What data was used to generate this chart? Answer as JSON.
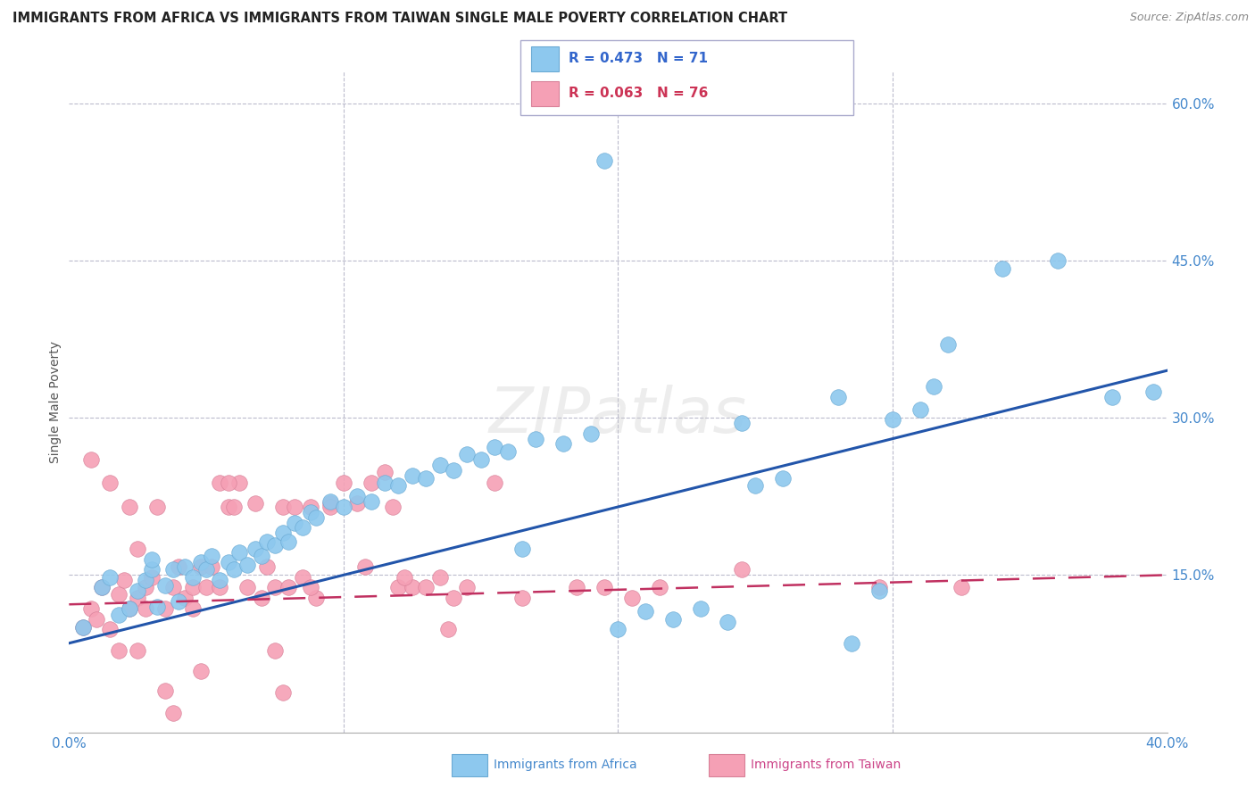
{
  "title": "IMMIGRANTS FROM AFRICA VS IMMIGRANTS FROM TAIWAN SINGLE MALE POVERTY CORRELATION CHART",
  "source": "Source: ZipAtlas.com",
  "ylabel": "Single Male Poverty",
  "xlim": [
    0.0,
    0.4
  ],
  "ylim": [
    0.0,
    0.63
  ],
  "africa_R": 0.473,
  "africa_N": 71,
  "taiwan_R": 0.063,
  "taiwan_N": 76,
  "africa_color": "#8DC8EE",
  "africa_edge_color": "#6AAAD4",
  "africa_line_color": "#2255AA",
  "taiwan_color": "#F5A0B5",
  "taiwan_edge_color": "#D88098",
  "taiwan_line_color": "#C03060",
  "grid_color": "#BBBBCC",
  "ytick_vals": [
    0.15,
    0.3,
    0.45,
    0.6
  ],
  "ytick_labels": [
    "15.0%",
    "30.0%",
    "45.0%",
    "60.0%"
  ],
  "xtick_vals": [
    0.0,
    0.1,
    0.2,
    0.3,
    0.4
  ],
  "xtick_labels": [
    "0.0%",
    "",
    "",
    "",
    "40.0%"
  ],
  "africa_trend_x": [
    0.0,
    0.4
  ],
  "africa_trend_y": [
    0.085,
    0.345
  ],
  "taiwan_trend_x": [
    0.0,
    0.4
  ],
  "taiwan_trend_y": [
    0.122,
    0.15
  ],
  "africa_scatter_x": [
    0.005,
    0.012,
    0.015,
    0.018,
    0.022,
    0.025,
    0.028,
    0.03,
    0.03,
    0.032,
    0.035,
    0.038,
    0.04,
    0.042,
    0.045,
    0.048,
    0.05,
    0.052,
    0.055,
    0.058,
    0.06,
    0.062,
    0.065,
    0.068,
    0.07,
    0.072,
    0.075,
    0.078,
    0.08,
    0.082,
    0.085,
    0.088,
    0.09,
    0.095,
    0.1,
    0.105,
    0.11,
    0.115,
    0.12,
    0.125,
    0.13,
    0.135,
    0.14,
    0.145,
    0.15,
    0.155,
    0.16,
    0.17,
    0.18,
    0.19,
    0.2,
    0.21,
    0.22,
    0.23,
    0.24,
    0.25,
    0.26,
    0.28,
    0.3,
    0.31,
    0.32,
    0.34,
    0.36,
    0.38,
    0.195,
    0.245,
    0.295,
    0.315,
    0.165,
    0.285,
    0.395
  ],
  "africa_scatter_y": [
    0.1,
    0.138,
    0.148,
    0.112,
    0.118,
    0.135,
    0.145,
    0.155,
    0.165,
    0.12,
    0.14,
    0.155,
    0.125,
    0.158,
    0.148,
    0.162,
    0.155,
    0.168,
    0.145,
    0.162,
    0.155,
    0.172,
    0.16,
    0.175,
    0.168,
    0.182,
    0.178,
    0.19,
    0.182,
    0.2,
    0.195,
    0.21,
    0.205,
    0.22,
    0.215,
    0.225,
    0.22,
    0.238,
    0.235,
    0.245,
    0.242,
    0.255,
    0.25,
    0.265,
    0.26,
    0.272,
    0.268,
    0.28,
    0.275,
    0.285,
    0.098,
    0.115,
    0.108,
    0.118,
    0.105,
    0.235,
    0.242,
    0.32,
    0.298,
    0.308,
    0.37,
    0.442,
    0.45,
    0.32,
    0.545,
    0.295,
    0.135,
    0.33,
    0.175,
    0.085,
    0.325
  ],
  "taiwan_scatter_x": [
    0.005,
    0.008,
    0.01,
    0.012,
    0.015,
    0.018,
    0.02,
    0.022,
    0.025,
    0.028,
    0.03,
    0.032,
    0.035,
    0.038,
    0.04,
    0.042,
    0.045,
    0.048,
    0.05,
    0.052,
    0.055,
    0.058,
    0.06,
    0.062,
    0.065,
    0.068,
    0.07,
    0.072,
    0.075,
    0.078,
    0.08,
    0.082,
    0.085,
    0.088,
    0.09,
    0.095,
    0.1,
    0.105,
    0.11,
    0.115,
    0.12,
    0.125,
    0.13,
    0.135,
    0.14,
    0.008,
    0.015,
    0.025,
    0.035,
    0.045,
    0.055,
    0.025,
    0.028,
    0.018,
    0.022,
    0.075,
    0.122,
    0.108,
    0.118,
    0.145,
    0.165,
    0.205,
    0.215,
    0.155,
    0.048,
    0.058,
    0.038,
    0.078,
    0.138,
    0.088,
    0.185,
    0.245,
    0.295,
    0.325,
    0.195,
    0.095
  ],
  "taiwan_scatter_y": [
    0.1,
    0.118,
    0.108,
    0.138,
    0.098,
    0.132,
    0.145,
    0.215,
    0.128,
    0.138,
    0.148,
    0.215,
    0.118,
    0.138,
    0.158,
    0.128,
    0.138,
    0.158,
    0.138,
    0.158,
    0.138,
    0.215,
    0.215,
    0.238,
    0.138,
    0.218,
    0.128,
    0.158,
    0.138,
    0.215,
    0.138,
    0.215,
    0.148,
    0.215,
    0.128,
    0.218,
    0.238,
    0.218,
    0.238,
    0.248,
    0.138,
    0.138,
    0.138,
    0.148,
    0.128,
    0.26,
    0.238,
    0.175,
    0.04,
    0.118,
    0.238,
    0.078,
    0.118,
    0.078,
    0.118,
    0.078,
    0.148,
    0.158,
    0.215,
    0.138,
    0.128,
    0.128,
    0.138,
    0.238,
    0.058,
    0.238,
    0.018,
    0.038,
    0.098,
    0.138,
    0.138,
    0.155,
    0.138,
    0.138,
    0.138,
    0.215
  ]
}
